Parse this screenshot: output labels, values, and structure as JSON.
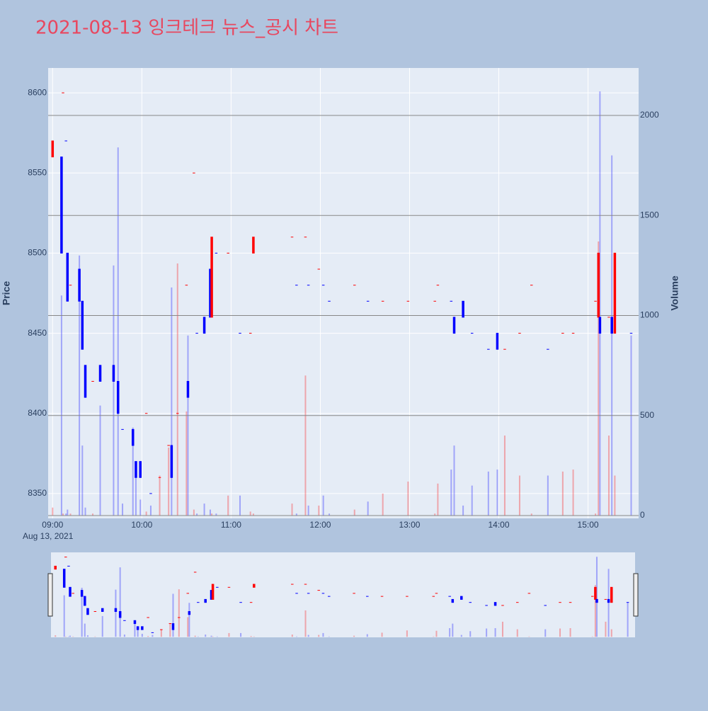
{
  "chart_data": {
    "type": "candlestick",
    "title": "2021-08-13 잉크테크 뉴스_공시 차트",
    "y_label": "Price",
    "y2_label": "Volume",
    "date_label": "Aug 13, 2021",
    "x": [
      "09:00",
      "09:06",
      "09:07",
      "09:09",
      "09:10",
      "09:12",
      "09:18",
      "09:20",
      "09:22",
      "09:27",
      "09:32",
      "09:41",
      "09:44",
      "09:47",
      "09:54",
      "09:56",
      "09:59",
      "10:03",
      "10:06",
      "10:12",
      "10:18",
      "10:20",
      "10:24",
      "10:30",
      "10:31",
      "10:35",
      "10:37",
      "10:42",
      "10:46",
      "10:47",
      "10:50",
      "10:58",
      "11:06",
      "11:13",
      "11:15",
      "11:41",
      "11:44",
      "11:50",
      "11:52",
      "11:59",
      "12:02",
      "12:06",
      "12:23",
      "12:32",
      "12:42",
      "12:59",
      "13:17",
      "13:19",
      "13:28",
      "13:30",
      "13:36",
      "13:42",
      "13:53",
      "13:59",
      "14:04",
      "14:14",
      "14:22",
      "14:33",
      "14:43",
      "14:50",
      "15:05",
      "15:07",
      "15:08",
      "15:14",
      "15:16",
      "15:18",
      "15:29"
    ],
    "open": [
      8560,
      8560,
      8600,
      8570,
      8500,
      8480,
      8490,
      8470,
      8430,
      8420,
      8430,
      8430,
      8420,
      8390,
      8390,
      8370,
      8370,
      8400,
      8350,
      8360,
      8380,
      8380,
      8400,
      8480,
      8420,
      8550,
      8450,
      8460,
      8490,
      8460,
      8500,
      8500,
      8450,
      8450,
      8500,
      8510,
      8480,
      8510,
      8480,
      8490,
      8480,
      8470,
      8480,
      8470,
      8470,
      8470,
      8470,
      8480,
      8470,
      8460,
      8470,
      8450,
      8440,
      8450,
      8440,
      8450,
      8480,
      8440,
      8450,
      8450,
      8470,
      8460,
      8460,
      8460,
      8460,
      8450,
      8450
    ],
    "close": [
      8570,
      8500,
      8600,
      8570,
      8470,
      8480,
      8470,
      8440,
      8410,
      8420,
      8420,
      8420,
      8400,
      8390,
      8380,
      8360,
      8360,
      8400,
      8350,
      8360,
      8380,
      8360,
      8400,
      8480,
      8410,
      8550,
      8450,
      8450,
      8460,
      8510,
      8500,
      8500,
      8450,
      8450,
      8510,
      8510,
      8480,
      8510,
      8480,
      8490,
      8480,
      8470,
      8480,
      8470,
      8470,
      8470,
      8470,
      8480,
      8470,
      8450,
      8460,
      8450,
      8440,
      8440,
      8440,
      8450,
      8480,
      8440,
      8450,
      8450,
      8470,
      8500,
      8450,
      8460,
      8450,
      8500,
      8450
    ],
    "volume": [
      40,
      1100,
      10,
      10,
      30,
      10,
      1300,
      350,
      40,
      10,
      550,
      1250,
      1840,
      60,
      440,
      200,
      80,
      20,
      50,
      200,
      340,
      1140,
      1260,
      520,
      900,
      30,
      10,
      60,
      30,
      10,
      10,
      100,
      100,
      20,
      10,
      60,
      10,
      700,
      50,
      50,
      100,
      10,
      30,
      70,
      110,
      170,
      10,
      160,
      230,
      350,
      50,
      150,
      220,
      230,
      400,
      200,
      10,
      200,
      220,
      230,
      10,
      1370,
      2120,
      400,
      1800,
      200,
      900
    ],
    "increasing_color": "#ff0000",
    "decreasing_color": "#0000ff",
    "xlim": [
      "08:57",
      "15:34"
    ],
    "xticks": [
      "09:00",
      "10:00",
      "11:00",
      "12:00",
      "13:00",
      "14:00",
      "15:00"
    ],
    "ylim": [
      8334.5,
      8615.5
    ],
    "yticks": [
      8350,
      8400,
      8450,
      8500,
      8550,
      8600
    ],
    "y2lim": [
      -14,
      2237
    ],
    "y2ticks": [
      0,
      500,
      1000,
      1500,
      2000
    ],
    "grid": true
  }
}
